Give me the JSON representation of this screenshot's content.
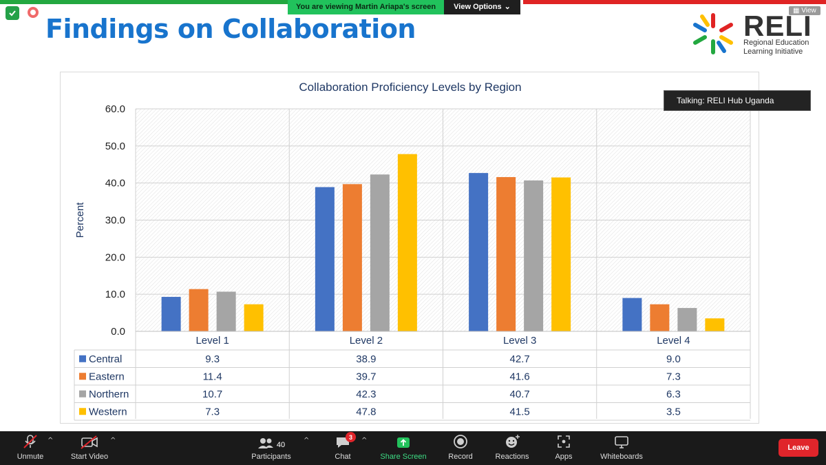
{
  "meeting": {
    "viewing_banner": "You are viewing Martin Ariapa's screen",
    "view_options_label": "View Options",
    "view_button_label": "View",
    "talking_label": "Talking: RELI Hub Uganda"
  },
  "slide": {
    "title": "Findings on Collaboration",
    "logo": {
      "wordmark": "RELI",
      "subtitle_line1": "Regional Education",
      "subtitle_line2": "Learning Initiative"
    }
  },
  "chart_data": {
    "type": "bar",
    "title": "Collaboration Proficiency Levels by Region",
    "ylabel": "Percent",
    "xlabel": "",
    "ylim": [
      0,
      60
    ],
    "yticks": [
      "0.0",
      "10.0",
      "20.0",
      "30.0",
      "40.0",
      "50.0",
      "60.0"
    ],
    "categories": [
      "Level 1",
      "Level 2",
      "Level 3",
      "Level 4"
    ],
    "series": [
      {
        "name": "Central",
        "color": "#4472c4",
        "values": [
          9.3,
          38.9,
          42.7,
          9.0
        ],
        "labels": [
          "9.3",
          "38.9",
          "42.7",
          "9.0"
        ]
      },
      {
        "name": "Eastern",
        "color": "#ed7d31",
        "values": [
          11.4,
          39.7,
          41.6,
          7.3
        ],
        "labels": [
          "11.4",
          "39.7",
          "41.6",
          "7.3"
        ]
      },
      {
        "name": "Northern",
        "color": "#a5a5a5",
        "values": [
          10.7,
          42.3,
          40.7,
          6.3
        ],
        "labels": [
          "10.7",
          "42.3",
          "40.7",
          "6.3"
        ]
      },
      {
        "name": "Western",
        "color": "#ffc000",
        "values": [
          7.3,
          47.8,
          41.5,
          3.5
        ],
        "labels": [
          "7.3",
          "47.8",
          "41.5",
          "3.5"
        ]
      }
    ],
    "legend": "data-table-below",
    "grid": true
  },
  "toolbar": {
    "unmute": {
      "label": "Unmute",
      "icon": "microphone-muted-icon"
    },
    "start_video": {
      "label": "Start Video",
      "icon": "video-off-icon"
    },
    "participants": {
      "label": "Participants",
      "count": "40",
      "icon": "participants-icon"
    },
    "chat": {
      "label": "Chat",
      "badge": "3",
      "icon": "chat-icon"
    },
    "share_screen": {
      "label": "Share Screen",
      "icon": "share-screen-icon",
      "color": "#3ddc84"
    },
    "record": {
      "label": "Record",
      "icon": "record-icon"
    },
    "reactions": {
      "label": "Reactions",
      "icon": "reactions-icon"
    },
    "apps": {
      "label": "Apps",
      "icon": "apps-icon"
    },
    "whiteboards": {
      "label": "Whiteboards",
      "icon": "whiteboard-icon"
    },
    "leave": {
      "label": "Leave",
      "color": "#e0252b"
    }
  }
}
